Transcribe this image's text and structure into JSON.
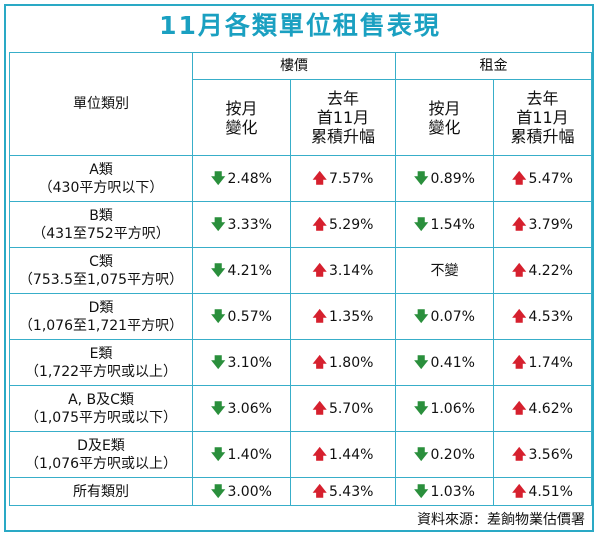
{
  "title": "11月各類單位租售表現",
  "header": {
    "category_col": "單位類別",
    "group_price": "樓價",
    "group_rent": "租金",
    "mom_line1": "按月",
    "mom_line2": "變化",
    "ytd_line1": "去年",
    "ytd_line2": "首11月",
    "ytd_line3": "累積升幅"
  },
  "rows": [
    {
      "name": "A類",
      "range": "（430平方呎以下）",
      "price_mom": "2.48%",
      "price_ytd": "7.57%",
      "rent_mom": "0.89%",
      "rent_ytd": "5.47%"
    },
    {
      "name": "B類",
      "range": "（431至752平方呎）",
      "price_mom": "3.33%",
      "price_ytd": "5.29%",
      "rent_mom": "1.54%",
      "rent_ytd": "3.79%"
    },
    {
      "name": "C類",
      "range": "（753.5至1,075平方呎）",
      "price_mom": "4.21%",
      "price_ytd": "3.14%",
      "rent_mom": "不變",
      "rent_ytd": "4.22%"
    },
    {
      "name": "D類",
      "range": "（1,076至1,721平方呎）",
      "price_mom": "0.57%",
      "price_ytd": "1.35%",
      "rent_mom": "0.07%",
      "rent_ytd": "4.53%"
    },
    {
      "name": "E類",
      "range": "（1,722平方呎或以上）",
      "price_mom": "3.10%",
      "price_ytd": "1.80%",
      "rent_mom": "0.41%",
      "rent_ytd": "1.74%"
    },
    {
      "name": "A, B及C類",
      "range": "（1,075平方呎或以下）",
      "price_mom": "3.06%",
      "price_ytd": "5.70%",
      "rent_mom": "1.06%",
      "rent_ytd": "4.62%"
    },
    {
      "name": "D及E類",
      "range": "（1,076平方呎或以上）",
      "price_mom": "1.40%",
      "price_ytd": "1.44%",
      "rent_mom": "0.20%",
      "rent_ytd": "3.56%"
    },
    {
      "name": "所有類別",
      "price_mom": "3.00%",
      "price_ytd": "5.43%",
      "rent_mom": "1.03%",
      "rent_ytd": "4.51%"
    }
  ],
  "source": "資料來源：差餉物業估價署",
  "colors": {
    "accent": "#1aa0c1",
    "up_arrow": "#d6202e",
    "down_arrow": "#2a8f3c"
  },
  "icons": {
    "up": "arrow-up-icon",
    "down": "arrow-down-icon"
  }
}
